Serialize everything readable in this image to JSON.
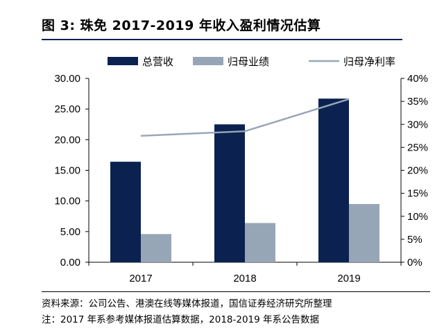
{
  "header": {
    "title": "图 3:  珠免 2017-2019 年收入盈利情况估算"
  },
  "chart_data": {
    "type": "bar",
    "categories": [
      "2017",
      "2018",
      "2019"
    ],
    "series": [
      {
        "name": "总营收",
        "kind": "bar",
        "axis": "left",
        "color": "#0b2251",
        "values": [
          16.4,
          22.5,
          26.7
        ]
      },
      {
        "name": "归母业绩",
        "kind": "bar",
        "axis": "left",
        "color": "#97a6b6",
        "values": [
          4.6,
          6.4,
          9.5
        ]
      },
      {
        "name": "归母净利率",
        "kind": "line",
        "axis": "right",
        "color": "#97a6b6",
        "values": [
          27.5,
          28.5,
          35.5
        ]
      }
    ],
    "y_left": {
      "min": 0,
      "max": 30,
      "ticks": [
        "0.00",
        "5.00",
        "10.00",
        "15.00",
        "20.00",
        "25.00",
        "30.00"
      ]
    },
    "y_right": {
      "min": 0,
      "max": 40,
      "ticks": [
        "0%",
        "5%",
        "10%",
        "15%",
        "20%",
        "25%",
        "30%",
        "35%",
        "40%"
      ]
    },
    "legend_position": "top",
    "grid": false
  },
  "footer": {
    "source": "资料来源：公司公告、港澳在线等媒体报道，国信证券经济研究所整理",
    "note": "注：2017 年系参考媒体报道估算数据，2018-2019 年系公告数据"
  }
}
